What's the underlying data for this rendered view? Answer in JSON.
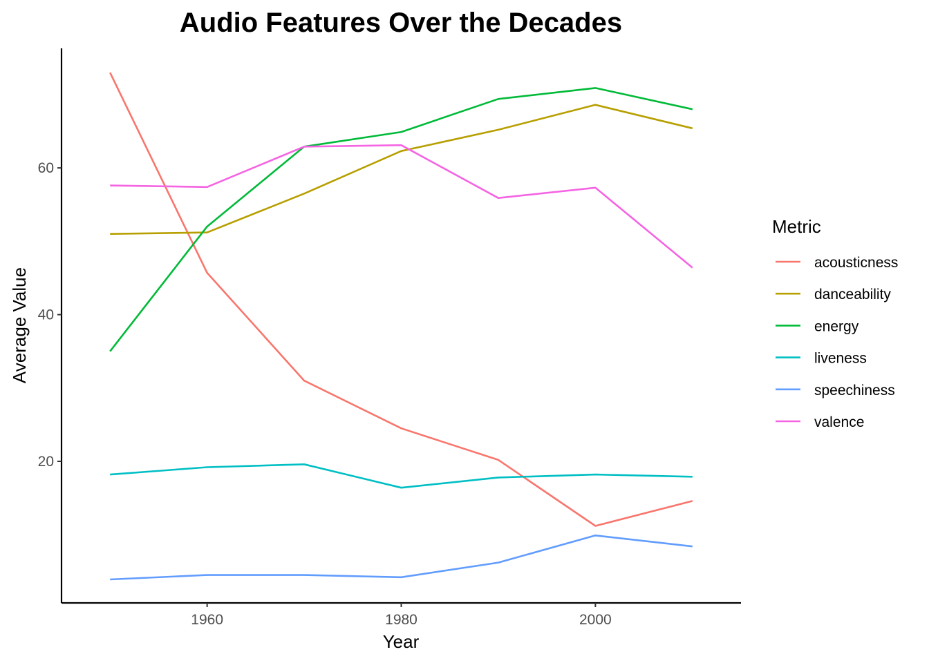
{
  "chart_data": {
    "type": "line",
    "title": "Audio Features Over the Decades",
    "xlabel": "Year",
    "ylabel": "Average Value",
    "x": [
      1950,
      1960,
      1970,
      1980,
      1990,
      2000,
      2010
    ],
    "xlim": [
      1945,
      2015
    ],
    "ylim": [
      0.7,
      76.3
    ],
    "xticks": [
      1960,
      1980,
      2000
    ],
    "xtick_labels": [
      "1960",
      "1980",
      "2000"
    ],
    "yticks": [
      20,
      40,
      60
    ],
    "ytick_labels": [
      "20",
      "40",
      "60"
    ],
    "grid": false,
    "legend_title": "Metric",
    "legend_position": "right",
    "series": [
      {
        "name": "acousticness",
        "color": "#F8766D",
        "values": [
          73.0,
          45.7,
          31.0,
          24.5,
          20.2,
          11.2,
          14.6
        ]
      },
      {
        "name": "danceability",
        "color": "#B79F00",
        "values": [
          51.0,
          51.2,
          56.5,
          62.3,
          65.2,
          68.6,
          65.4
        ]
      },
      {
        "name": "energy",
        "color": "#00BA38",
        "values": [
          35.0,
          52.0,
          62.9,
          64.9,
          69.4,
          70.9,
          68.0
        ]
      },
      {
        "name": "liveness",
        "color": "#00BFC4",
        "values": [
          18.2,
          19.2,
          19.6,
          16.4,
          17.8,
          18.2,
          17.9
        ]
      },
      {
        "name": "speechiness",
        "color": "#619CFF",
        "values": [
          3.9,
          4.5,
          4.5,
          4.2,
          6.2,
          9.9,
          8.4
        ]
      },
      {
        "name": "valence",
        "color": "#F564E3",
        "values": [
          57.6,
          57.4,
          62.9,
          63.1,
          55.9,
          57.3,
          46.4
        ]
      }
    ]
  }
}
